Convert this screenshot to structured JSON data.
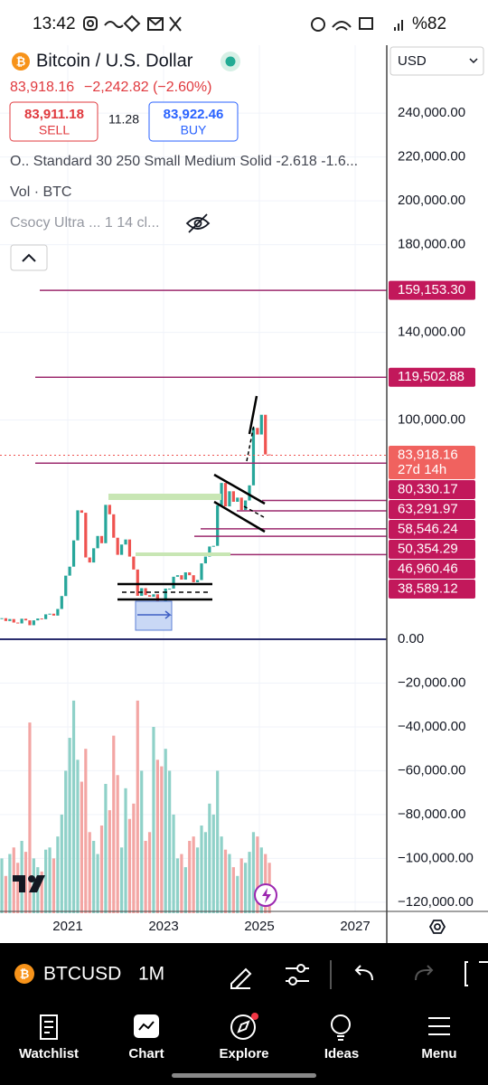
{
  "status_bar": {
    "time": "13:42",
    "battery": "%82"
  },
  "header": {
    "symbol_name": "Bitcoin / U.S. Dollar",
    "currency": "USD",
    "price": "83,918.16",
    "change": "−2,242.82 (−2.60%)",
    "sell_price": "83,911.18",
    "sell": "SELL",
    "spread": "11.28",
    "buy_price": "83,922.46",
    "buy": "BUY"
  },
  "indicators": [
    "O.. Standard 30 250 Small Medium Solid -2.618 -1.6...",
    "Vol · BTC",
    "Csocy Ultra ... 1 14 cl..."
  ],
  "chart_data": {
    "type": "candlestick",
    "colors": {
      "up": "#26a69a",
      "down": "#ef5350",
      "volume_up": "#8fd1c8",
      "volume_down": "#f3a6a4"
    },
    "closes": [
      9600,
      8300,
      9200,
      7600,
      7200,
      9350,
      8600,
      6400,
      8600,
      9450,
      9150,
      11350,
      11650,
      10780,
      13800,
      19700,
      29000,
      33100,
      45100,
      58800,
      57700,
      37300,
      35000,
      41500,
      47100,
      43800,
      61300,
      57000,
      46300,
      38500,
      43200,
      45500,
      37700,
      31800,
      19800,
      23300,
      20100,
      19400,
      20500,
      17200,
      16500,
      23100,
      23100,
      28500,
      29200,
      27200,
      30500,
      29200,
      26000,
      27000,
      34600,
      37700,
      42300,
      42600,
      61100,
      71300,
      60600,
      67500,
      62700,
      64600,
      58900,
      63300,
      70200,
      96400,
      93400,
      102400,
      84300,
      83918.16
    ],
    "volume": [
      -100000,
      -108000,
      -98000,
      -95000,
      -102000,
      -92000,
      -97000,
      -38000,
      -100000,
      -104000,
      -106000,
      -96000,
      -95000,
      -100000,
      -90000,
      -80000,
      -60000,
      -45000,
      -28000,
      -55000,
      -65000,
      -50000,
      -88000,
      -92000,
      -98000,
      -85000,
      -66000,
      -78000,
      -44000,
      -62000,
      -95000,
      -68000,
      -82000,
      -75000,
      -28000,
      -60000,
      -92000,
      -88000,
      -40000,
      -55000,
      -58000,
      -50000,
      -60000,
      -80000,
      -100000,
      -98000,
      -104000,
      -92000,
      -90000,
      -95000,
      -85000,
      -88000,
      -75000,
      -80000,
      -60000,
      -90000,
      -96000,
      -98000,
      -104000,
      -108000,
      -100000,
      -102000,
      -97000,
      -88000,
      -90000,
      -95000,
      -98000,
      -102000
    ],
    "ylim": [
      -125000,
      271000
    ],
    "yticks": [
      {
        "value": 240000,
        "label": "240,000.00"
      },
      {
        "value": 220000,
        "label": "220,000.00"
      },
      {
        "value": 200000,
        "label": "200,000.00"
      },
      {
        "value": 180000,
        "label": "180,000.00"
      },
      {
        "value": 140000,
        "label": "140,000.00"
      },
      {
        "value": 100000,
        "label": "100,000.00"
      },
      {
        "value": 0,
        "label": "0.00"
      },
      {
        "value": -20000,
        "label": "−20,000.00"
      },
      {
        "value": -40000,
        "label": "−40,000.00"
      },
      {
        "value": -60000,
        "label": "−60,000.00"
      },
      {
        "value": -80000,
        "label": "−80,000.00"
      },
      {
        "value": -100000,
        "label": "−100,000.00"
      },
      {
        "value": -120000,
        "label": "−120,000.00"
      }
    ],
    "xlim": [
      2019.585,
      2027.66
    ],
    "xticks": [
      2021,
      2023,
      2025,
      2027
    ],
    "levels": [
      {
        "value": 159153.3,
        "label": "159,153.30"
      },
      {
        "value": 119502.88,
        "label": "119,502.88"
      },
      {
        "value": 83918.16,
        "label": "83,918.16"
      },
      {
        "value": 80330.17,
        "label": "80,330.17"
      },
      {
        "value": 63291.97,
        "label": "63,291.97"
      },
      {
        "value": 58546.24,
        "label": "58,546.24"
      },
      {
        "value": 50354.29,
        "label": "50,354.29"
      },
      {
        "value": 46960.46,
        "label": "46,960.46"
      },
      {
        "value": 38589.12,
        "label": "38,589.12"
      }
    ],
    "current_level": 2,
    "countdown": "27d 14h"
  },
  "toolbar": {
    "symbol": "BTCUSD",
    "interval": "1M"
  },
  "nav": [
    "Watchlist",
    "Chart",
    "Explore",
    "Ideas",
    "Menu"
  ]
}
